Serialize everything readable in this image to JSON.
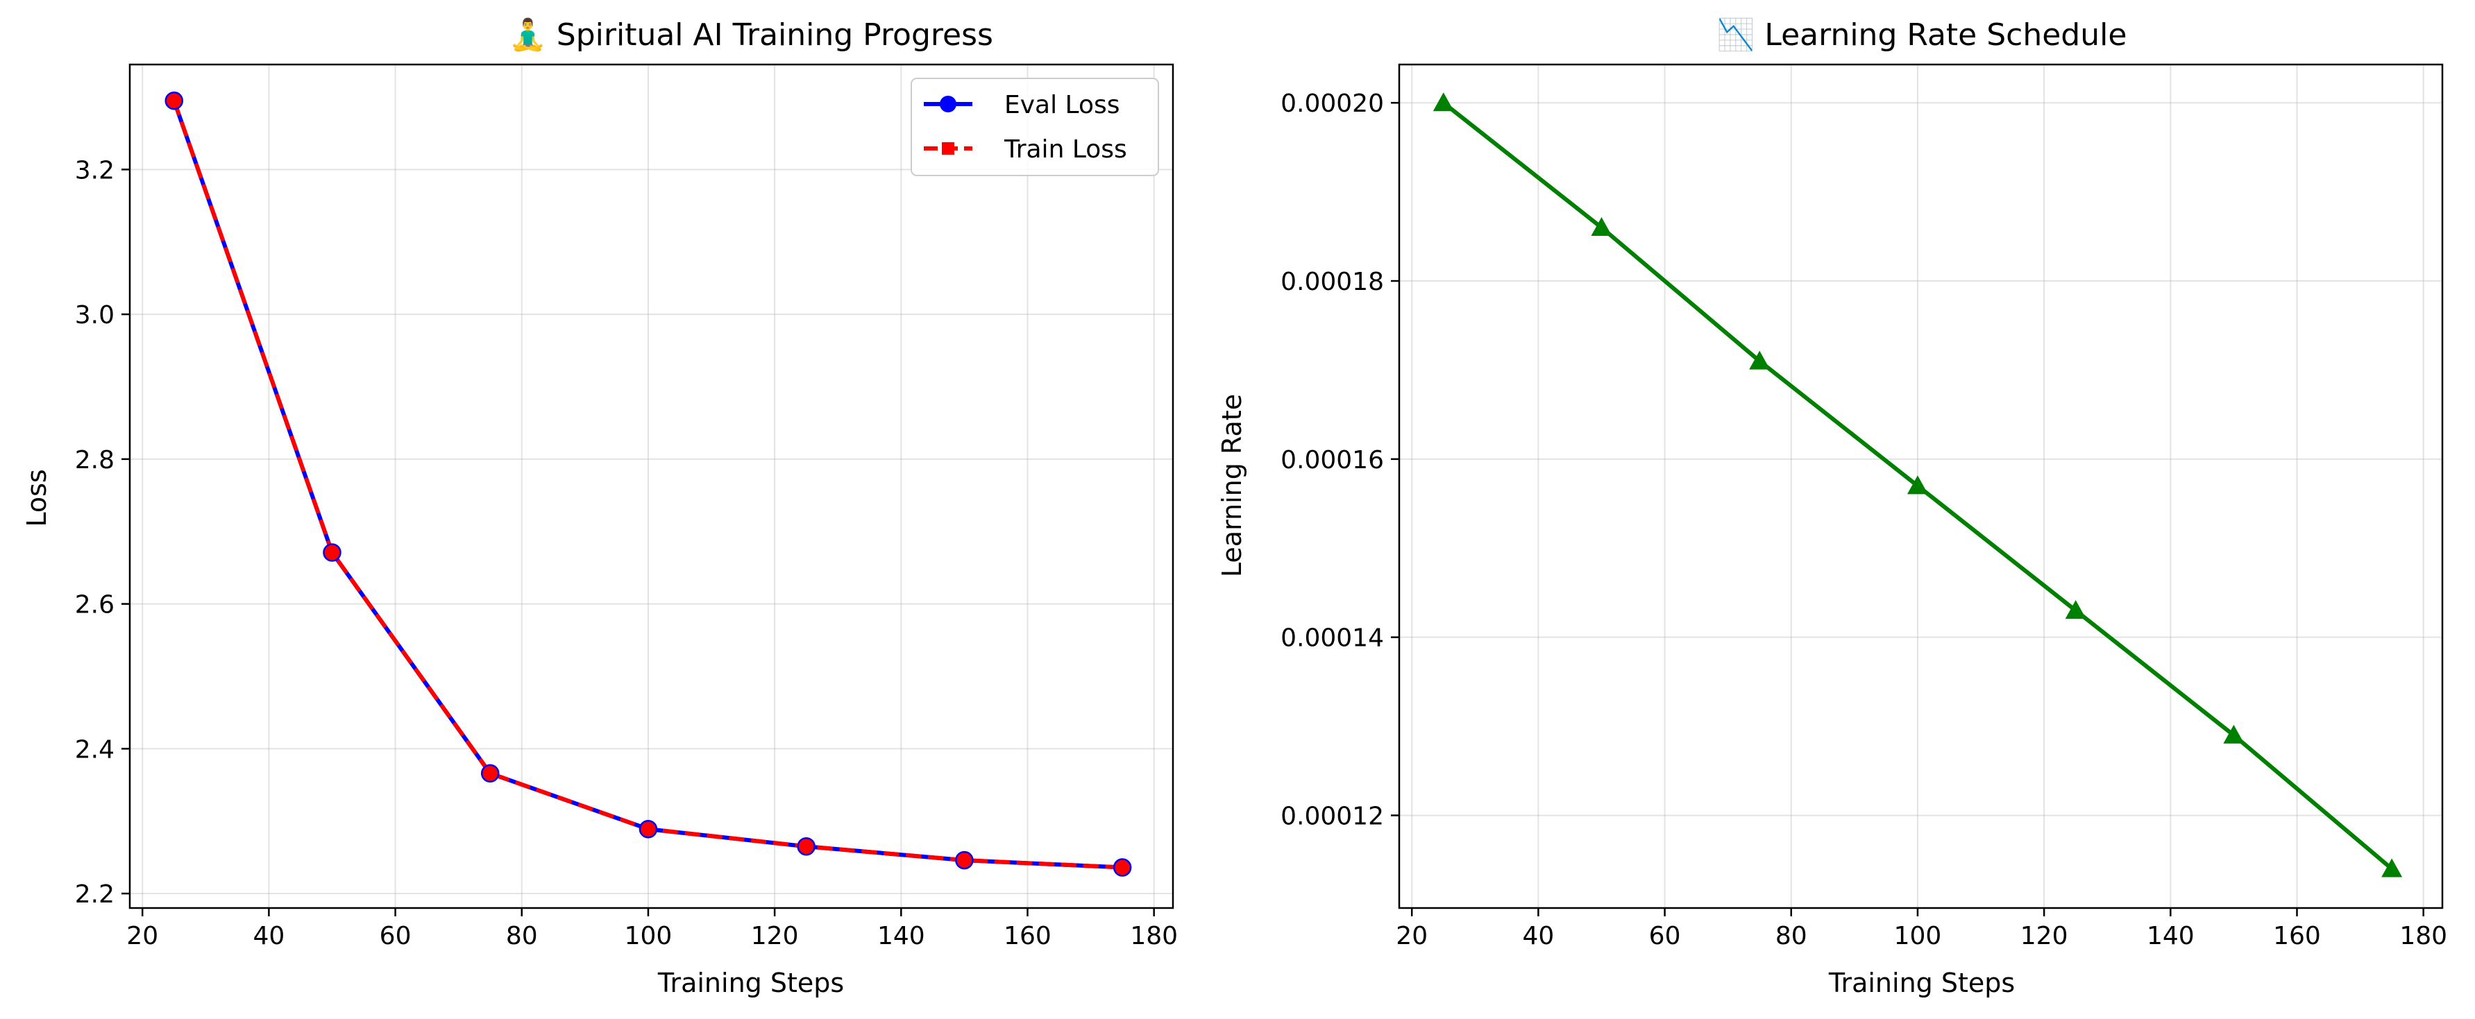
{
  "chart_data": [
    {
      "type": "line",
      "title": "🧘‍♂️ Spiritual AI Training Progress",
      "xlabel": "Training Steps",
      "ylabel": "Loss",
      "xlim": [
        18,
        183
      ],
      "ylim": [
        2.18,
        3.345
      ],
      "xticks": [
        20,
        40,
        60,
        80,
        100,
        120,
        140,
        160,
        180
      ],
      "yticks": [
        2.2,
        2.4,
        2.6,
        2.8,
        3.0,
        3.2
      ],
      "grid": true,
      "legend": "top-right",
      "x": [
        25,
        50,
        75,
        100,
        125,
        150,
        175
      ],
      "series": [
        {
          "name": "Eval Loss",
          "color": "#0000ff",
          "style": "solid",
          "marker": "circle",
          "values": [
            3.295,
            2.671,
            2.366,
            2.289,
            2.265,
            2.246,
            2.236
          ]
        },
        {
          "name": "Train Loss",
          "color": "#ff0000",
          "style": "dashed",
          "marker": "square",
          "values": [
            3.295,
            2.671,
            2.366,
            2.289,
            2.265,
            2.246,
            2.236
          ]
        }
      ]
    },
    {
      "type": "line",
      "title": "📉 Learning Rate Schedule",
      "xlabel": "Training Steps",
      "ylabel": "Learning Rate",
      "xlim": [
        18,
        183
      ],
      "ylim": [
        0.0001096,
        0.0002043
      ],
      "xticks": [
        20,
        40,
        60,
        80,
        100,
        120,
        140,
        160,
        180
      ],
      "yticks": [
        0.00012,
        0.00014,
        0.00016,
        0.00018,
        0.0002
      ],
      "ytick_labels": [
        "0.00012",
        "0.00014",
        "0.00016",
        "0.00018",
        "0.00020"
      ],
      "grid": true,
      "x": [
        25,
        50,
        75,
        100,
        125,
        150,
        175
      ],
      "series": [
        {
          "color": "#008000",
          "style": "solid",
          "marker": "triangle",
          "values": [
            0.0002,
            0.000186,
            0.000171,
            0.000157,
            0.000143,
            0.000129,
            0.000114
          ]
        }
      ]
    }
  ]
}
